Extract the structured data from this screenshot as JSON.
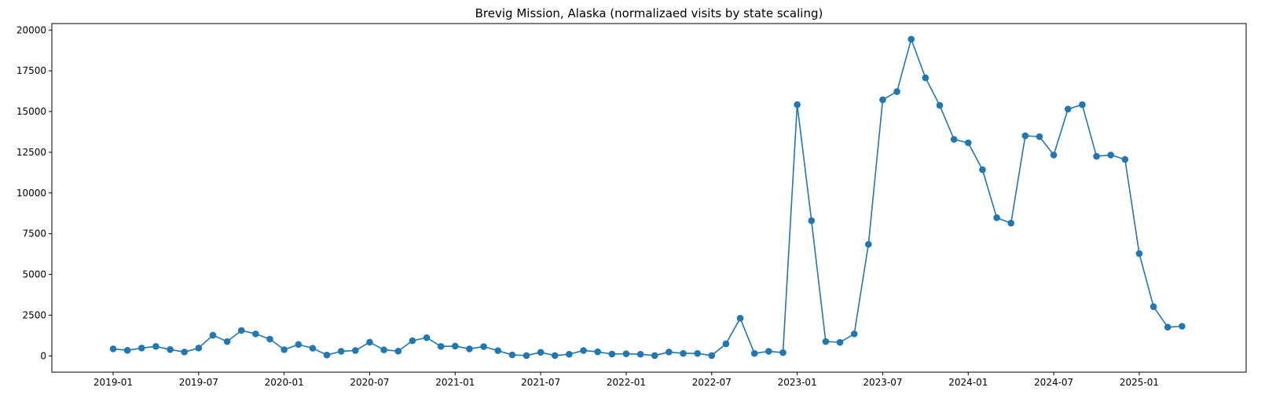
{
  "chart_data": {
    "type": "line",
    "title": "Brevig Mission, Alaska (normalizaed visits by state scaling)",
    "xlabel": "",
    "ylabel": "",
    "ylim": [
      -1000,
      20400
    ],
    "grid": false,
    "line_color": "#1f77b4",
    "marker": "circle",
    "x_ticks": [
      "2019-01",
      "2019-07",
      "2020-01",
      "2020-07",
      "2021-01",
      "2021-07",
      "2022-01",
      "2022-07",
      "2023-01",
      "2023-07",
      "2024-01",
      "2024-07",
      "2025-01"
    ],
    "y_ticks": [
      0,
      2500,
      5000,
      7500,
      10000,
      12500,
      15000,
      17500,
      20000
    ],
    "y_tick_labels": [
      "0",
      "2500",
      "5000",
      "7500",
      "10000",
      "12500",
      "15000",
      "17500",
      "20000"
    ],
    "x": [
      "2019-01",
      "2019-02",
      "2019-03",
      "2019-04",
      "2019-05",
      "2019-06",
      "2019-07",
      "2019-08",
      "2019-09",
      "2019-10",
      "2019-11",
      "2019-12",
      "2020-01",
      "2020-02",
      "2020-03",
      "2020-04",
      "2020-05",
      "2020-06",
      "2020-07",
      "2020-08",
      "2020-09",
      "2020-10",
      "2020-11",
      "2020-12",
      "2021-01",
      "2021-02",
      "2021-03",
      "2021-04",
      "2021-05",
      "2021-06",
      "2021-07",
      "2021-08",
      "2021-09",
      "2021-10",
      "2021-11",
      "2021-12",
      "2022-01",
      "2022-02",
      "2022-03",
      "2022-04",
      "2022-05",
      "2022-06",
      "2022-07",
      "2022-08",
      "2022-09",
      "2022-10",
      "2022-11",
      "2022-12",
      "2023-01",
      "2023-02",
      "2023-03",
      "2023-04",
      "2023-05",
      "2023-06",
      "2023-07",
      "2023-08",
      "2023-09",
      "2023-10",
      "2023-11",
      "2023-12",
      "2024-01",
      "2024-02",
      "2024-03",
      "2024-04",
      "2024-05",
      "2024-06",
      "2024-07",
      "2024-08",
      "2024-09",
      "2024-10",
      "2024-11",
      "2024-12",
      "2025-01",
      "2025-02",
      "2025-03",
      "2025-04"
    ],
    "series": [
      {
        "values": [
          430,
          340,
          480,
          580,
          390,
          240,
          480,
          1270,
          880,
          1560,
          1350,
          1030,
          380,
          700,
          470,
          50,
          280,
          330,
          840,
          370,
          290,
          930,
          1120,
          580,
          600,
          430,
          570,
          320,
          60,
          20,
          220,
          20,
          100,
          330,
          250,
          110,
          130,
          100,
          20,
          240,
          150,
          150,
          20,
          740,
          2310,
          150,
          280,
          200,
          15420,
          8300,
          880,
          830,
          1350,
          6850,
          15720,
          16220,
          19440,
          17070,
          15380,
          13290,
          13080,
          11430,
          8480,
          8150,
          13510,
          13460,
          12330,
          15150,
          15420,
          12250,
          12330,
          12060,
          6280,
          3020,
          1760,
          1820
        ]
      }
    ]
  }
}
